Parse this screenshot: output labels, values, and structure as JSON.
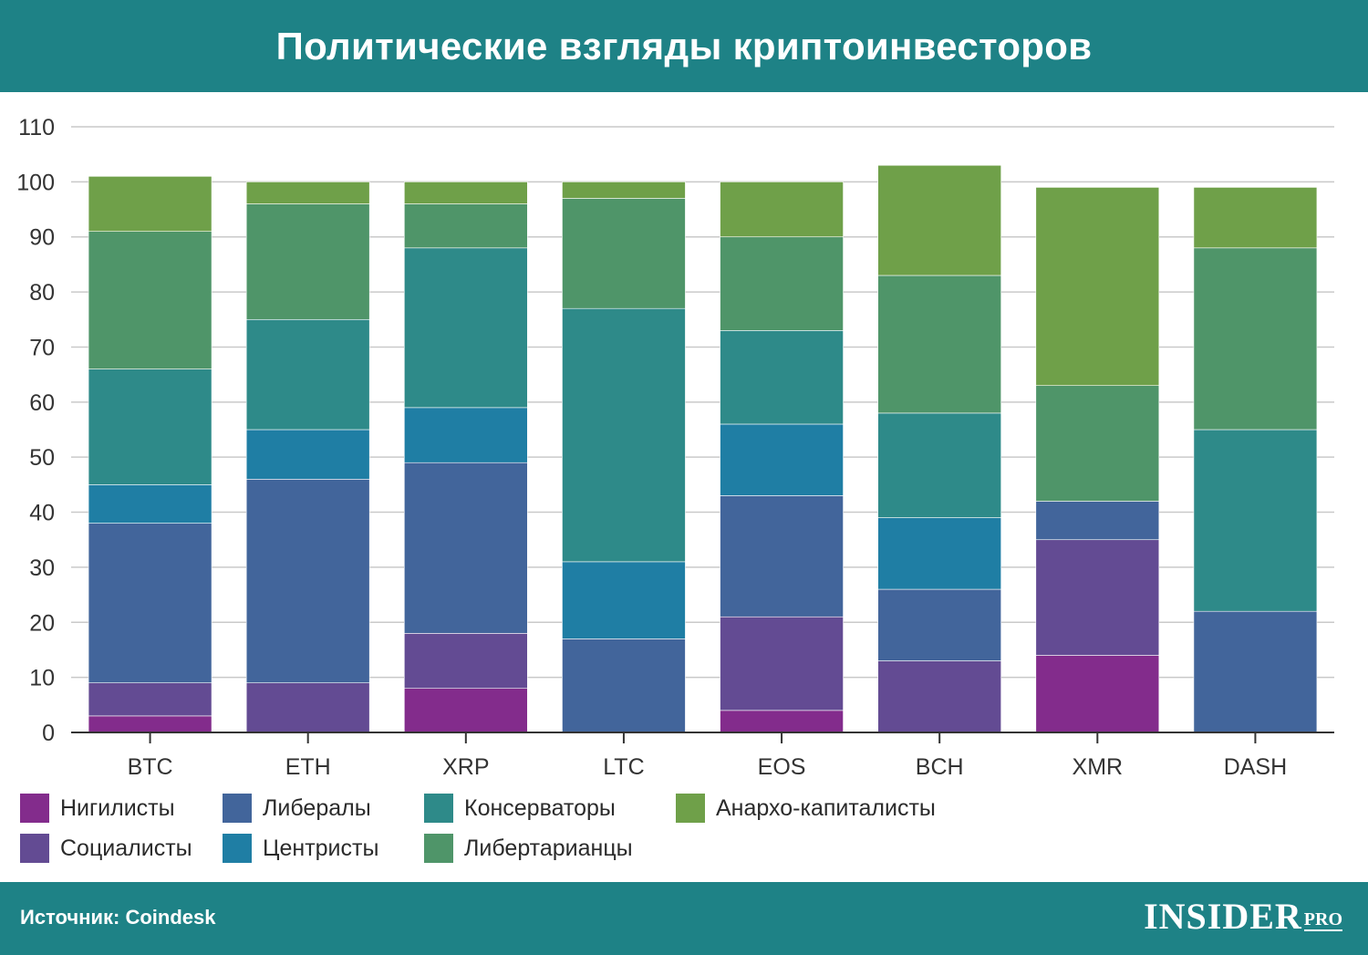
{
  "header": {
    "title": "Политические взгляды криптоинвесторов"
  },
  "footer": {
    "source": "Источник: Coindesk",
    "logo_main": "INSIDER",
    "logo_sub": "PRO"
  },
  "legend": [
    {
      "label": "Нигилисты",
      "color": "#832c8c"
    },
    {
      "label": "Либералы",
      "color": "#42659b"
    },
    {
      "label": "Консерваторы",
      "color": "#2e8a89"
    },
    {
      "label": "Анархо-капиталисты",
      "color": "#6fa049"
    },
    {
      "label": "Социалисты",
      "color": "#634b93"
    },
    {
      "label": "Центристы",
      "color": "#1f7ea4"
    },
    {
      "label": "Либертарианцы",
      "color": "#4f9569"
    }
  ],
  "chart_data": {
    "type": "bar",
    "stacked": true,
    "categories": [
      "BTC",
      "ETH",
      "XRP",
      "LTC",
      "EOS",
      "BCH",
      "XMR",
      "DASH"
    ],
    "ylim": [
      0,
      110
    ],
    "yticks": [
      0,
      10,
      20,
      30,
      40,
      50,
      60,
      70,
      80,
      90,
      100,
      110
    ],
    "grid": true,
    "legend_position": "bottom",
    "series": [
      {
        "name": "Нигилисты",
        "color": "#832c8c",
        "values": [
          3,
          0,
          8,
          0,
          4,
          0,
          14,
          0
        ]
      },
      {
        "name": "Социалисты",
        "color": "#634b93",
        "values": [
          6,
          9,
          10,
          0,
          17,
          13,
          21,
          0
        ]
      },
      {
        "name": "Либералы",
        "color": "#42659b",
        "values": [
          29,
          37,
          31,
          17,
          22,
          13,
          7,
          22
        ]
      },
      {
        "name": "Центристы",
        "color": "#1f7ea4",
        "values": [
          7,
          9,
          10,
          14,
          13,
          13,
          0,
          0
        ]
      },
      {
        "name": "Консерваторы",
        "color": "#2e8a89",
        "values": [
          21,
          20,
          29,
          46,
          17,
          19,
          0,
          33
        ]
      },
      {
        "name": "Либертарианцы",
        "color": "#4f9569",
        "values": [
          25,
          21,
          8,
          20,
          17,
          25,
          21,
          33
        ]
      },
      {
        "name": "Анархо-капиталисты",
        "color": "#6fa049",
        "values": [
          10,
          4,
          4,
          3,
          10,
          20,
          36,
          11
        ]
      }
    ]
  }
}
